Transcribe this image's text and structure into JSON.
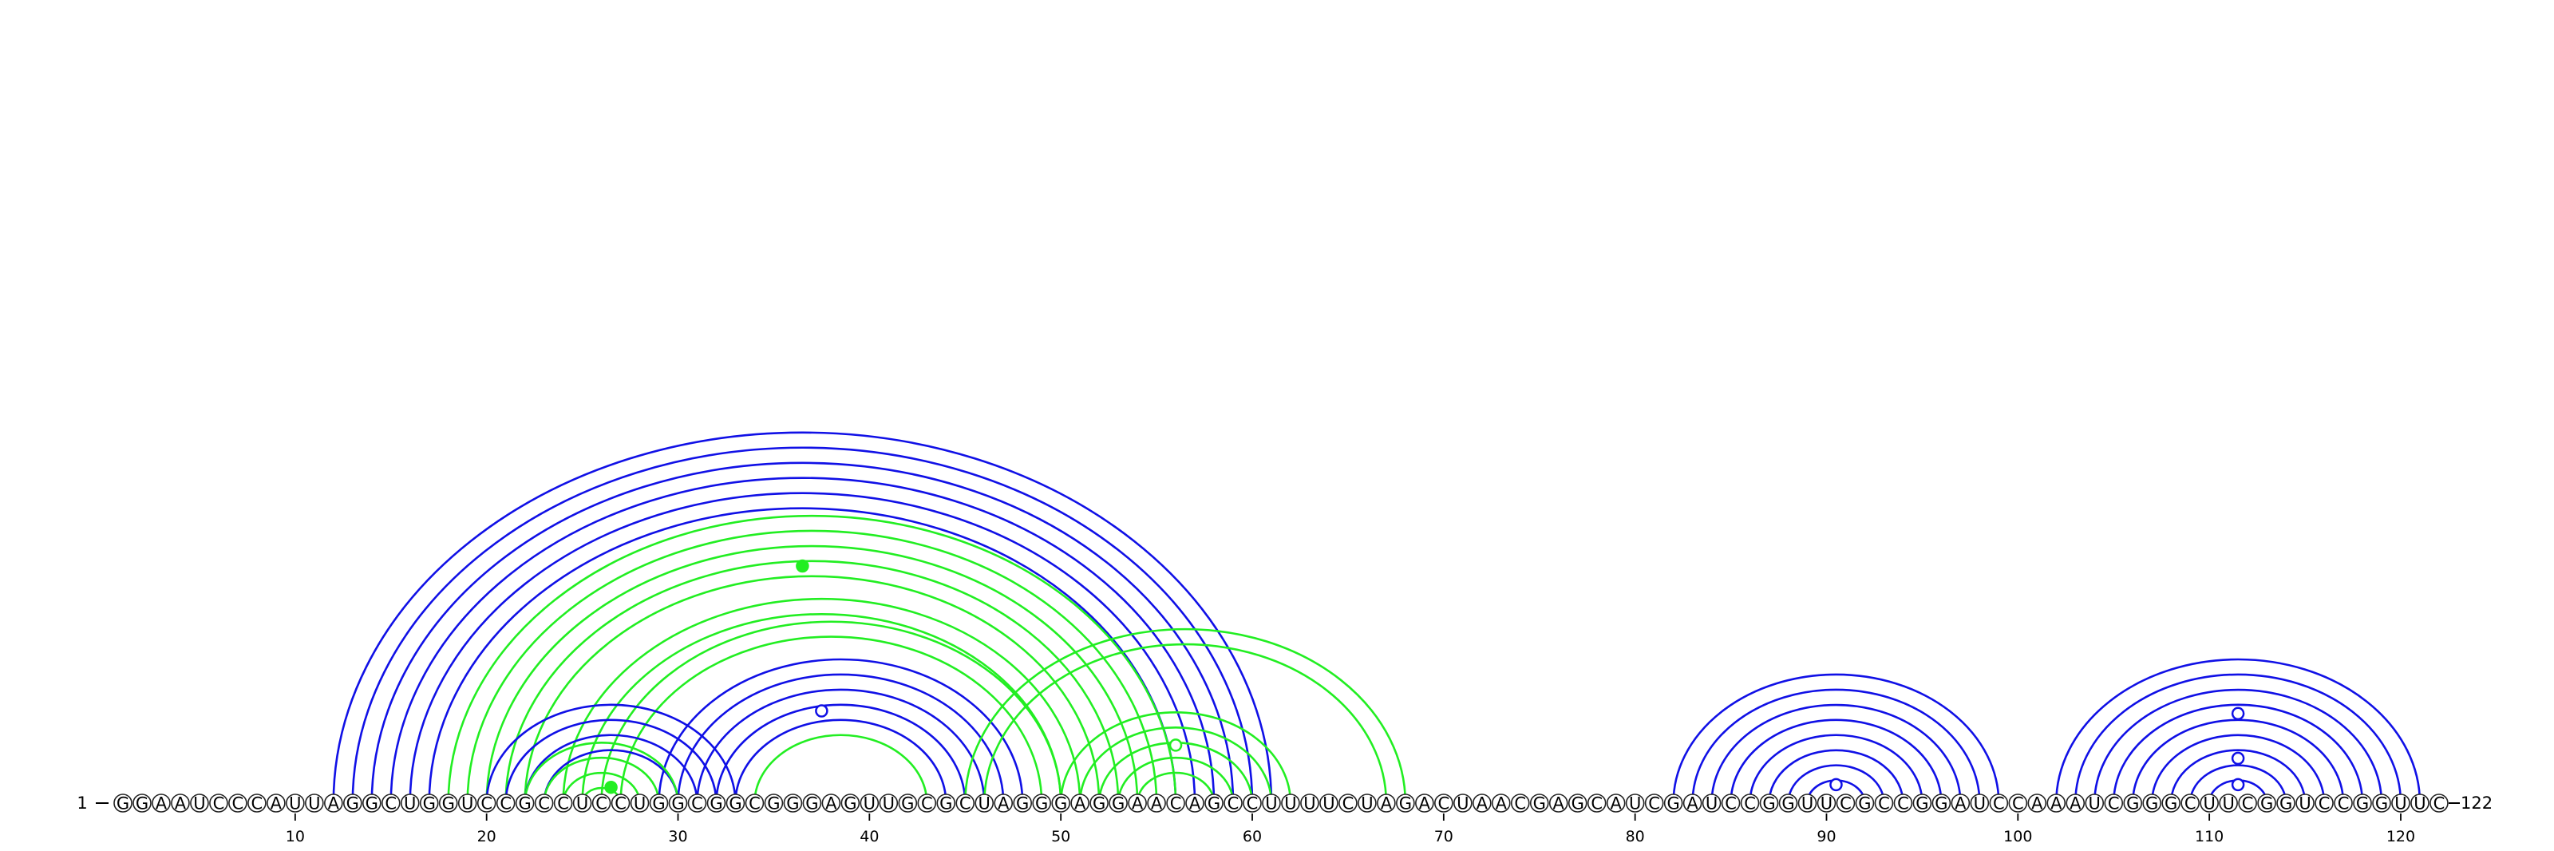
{
  "sequence": "GGAAUCCCAUUAGGCUGGUCCGCCUCCUGGCGGCGGGAGUUGCGCUAGGGAGGAACAGCCUUUUCUAGACUAACGAGCAUCGAUCCGGUUCGCCGGAUCCAAAUCGGGCUUCGGUCCGGUUC",
  "start_label": "1",
  "end_label": "122",
  "ticks": [
    "10",
    "20",
    "30",
    "40",
    "50",
    "60",
    "70",
    "80",
    "90",
    "100",
    "110",
    "120"
  ],
  "colors": {
    "blue": "#1010e6",
    "green": "#22ee22",
    "background": "#ffffff"
  },
  "arcs": [
    {
      "i": 12,
      "j": 61,
      "color": "blue"
    },
    {
      "i": 13,
      "j": 60,
      "color": "blue"
    },
    {
      "i": 14,
      "j": 59,
      "color": "blue"
    },
    {
      "i": 15,
      "j": 58,
      "color": "blue"
    },
    {
      "i": 16,
      "j": 57,
      "color": "blue"
    },
    {
      "i": 17,
      "j": 56,
      "color": "blue"
    },
    {
      "i": 18,
      "j": 56,
      "color": "green"
    },
    {
      "i": 19,
      "j": 55,
      "color": "green"
    },
    {
      "i": 20,
      "j": 54,
      "color": "green"
    },
    {
      "i": 21,
      "j": 53,
      "color": "green"
    },
    {
      "i": 22,
      "j": 52,
      "color": "green"
    },
    {
      "i": 24,
      "j": 51,
      "color": "green"
    },
    {
      "i": 25,
      "j": 50,
      "color": "green"
    },
    {
      "i": 26,
      "j": 50,
      "color": "green"
    },
    {
      "i": 27,
      "j": 49,
      "color": "green"
    },
    {
      "i": 29,
      "j": 48,
      "color": "blue"
    },
    {
      "i": 30,
      "j": 47,
      "color": "blue"
    },
    {
      "i": 31,
      "j": 46,
      "color": "blue"
    },
    {
      "i": 32,
      "j": 45,
      "color": "blue"
    },
    {
      "i": 33,
      "j": 44,
      "color": "blue"
    },
    {
      "i": 20,
      "j": 33,
      "color": "blue"
    },
    {
      "i": 21,
      "j": 32,
      "color": "blue"
    },
    {
      "i": 22,
      "j": 31,
      "color": "blue"
    },
    {
      "i": 23,
      "j": 30,
      "color": "blue"
    },
    {
      "i": 22,
      "j": 30,
      "color": "green"
    },
    {
      "i": 23,
      "j": 29,
      "color": "green"
    },
    {
      "i": 24,
      "j": 28,
      "color": "green"
    },
    {
      "i": 25,
      "j": 27,
      "color": "green"
    },
    {
      "i": 34,
      "j": 43,
      "color": "green"
    },
    {
      "i": 45,
      "j": 68,
      "color": "green"
    },
    {
      "i": 46,
      "j": 67,
      "color": "green"
    },
    {
      "i": 50,
      "j": 62,
      "color": "green"
    },
    {
      "i": 51,
      "j": 61,
      "color": "green"
    },
    {
      "i": 52,
      "j": 60,
      "color": "green"
    },
    {
      "i": 53,
      "j": 59,
      "color": "green"
    },
    {
      "i": 54,
      "j": 58,
      "color": "green"
    },
    {
      "i": 82,
      "j": 99,
      "color": "blue"
    },
    {
      "i": 83,
      "j": 98,
      "color": "blue"
    },
    {
      "i": 84,
      "j": 97,
      "color": "blue"
    },
    {
      "i": 85,
      "j": 96,
      "color": "blue"
    },
    {
      "i": 86,
      "j": 95,
      "color": "blue"
    },
    {
      "i": 87,
      "j": 94,
      "color": "blue"
    },
    {
      "i": 88,
      "j": 93,
      "color": "blue"
    },
    {
      "i": 89,
      "j": 92,
      "color": "blue"
    },
    {
      "i": 102,
      "j": 121,
      "color": "blue"
    },
    {
      "i": 103,
      "j": 120,
      "color": "blue"
    },
    {
      "i": 104,
      "j": 119,
      "color": "blue"
    },
    {
      "i": 105,
      "j": 118,
      "color": "blue"
    },
    {
      "i": 106,
      "j": 117,
      "color": "blue"
    },
    {
      "i": 107,
      "j": 116,
      "color": "blue"
    },
    {
      "i": 108,
      "j": 115,
      "color": "blue"
    },
    {
      "i": 109,
      "j": 114,
      "color": "blue"
    },
    {
      "i": 110,
      "j": 113,
      "color": "blue"
    }
  ],
  "markers": [
    {
      "pos": 36.5,
      "level": 0.9,
      "color": "green",
      "fill": "filled"
    },
    {
      "pos": 37.5,
      "level": 0.35,
      "color": "blue",
      "fill": "hollow"
    },
    {
      "pos": 26.5,
      "level": 0.06,
      "color": "green",
      "fill": "filled"
    },
    {
      "pos": 56,
      "level": 0.22,
      "color": "green",
      "fill": "hollow"
    },
    {
      "pos": 90.5,
      "level": 0.07,
      "color": "blue",
      "fill": "hollow"
    },
    {
      "pos": 111.5,
      "level": 0.34,
      "color": "blue",
      "fill": "hollow"
    },
    {
      "pos": 111.5,
      "level": 0.17,
      "color": "blue",
      "fill": "hollow"
    },
    {
      "pos": 111.5,
      "level": 0.07,
      "color": "blue",
      "fill": "hollow"
    }
  ]
}
